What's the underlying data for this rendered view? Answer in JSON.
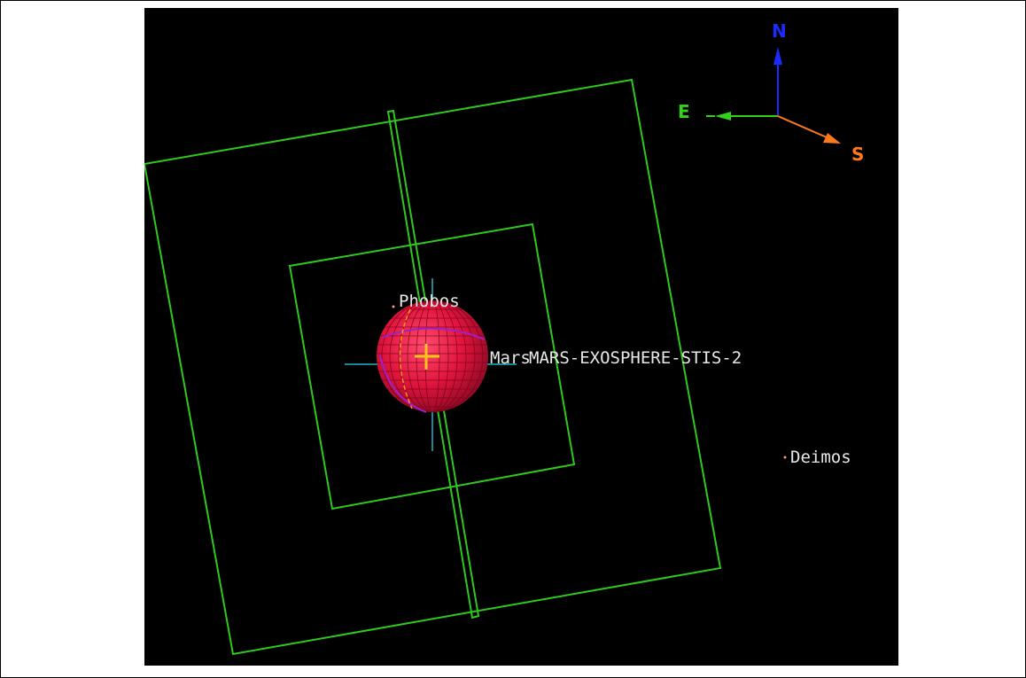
{
  "viewer": {
    "labels": {
      "phobos": "Phobos",
      "mars": "Mars",
      "target": "MARS-EXOSPHERE-STIS-2",
      "deimos": "Deimos"
    },
    "compass": {
      "north": "N",
      "east": "E",
      "south": "S"
    }
  },
  "colors": {
    "background": "#000000",
    "frame_lines": "#2fc81e",
    "planet": "#e0143c",
    "planet_grid": "#7a0018",
    "crosshair": "#1fb6c8",
    "target_marker": "#ffc21a",
    "label_text": "#e8e8e8",
    "compass_north": "#1a2bff",
    "compass_east": "#33d11c",
    "compass_south": "#ff7a1a"
  }
}
